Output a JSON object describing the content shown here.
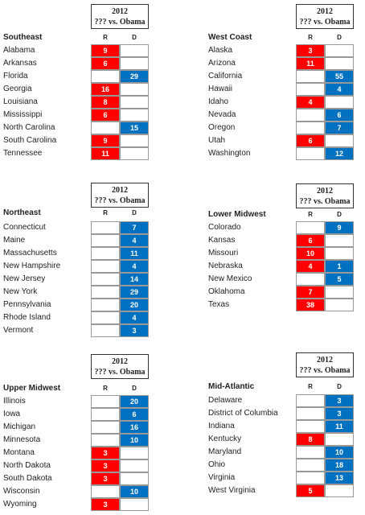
{
  "panels": [
    {
      "year": "2012",
      "subtitle": "??? vs. Obama",
      "region": "Southeast",
      "col_r": "R",
      "col_d": "D",
      "rows": [
        [
          "Alabama",
          9,
          null
        ],
        [
          "Arkansas",
          6,
          null
        ],
        [
          "Florida",
          null,
          29
        ],
        [
          "Georgia",
          16,
          null
        ],
        [
          "Louisiana",
          8,
          null
        ],
        [
          "Mississippi",
          6,
          null
        ],
        [
          "North Carolina",
          null,
          15
        ],
        [
          "South Carolina",
          9,
          null
        ],
        [
          "Tennessee",
          11,
          null
        ]
      ]
    },
    {
      "year": "2012",
      "subtitle": "??? vs. Obama",
      "region": "West Coast",
      "col_r": "R",
      "col_d": "D",
      "rows": [
        [
          "Alaska",
          3,
          null
        ],
        [
          "Arizona",
          11,
          null
        ],
        [
          "California",
          null,
          55
        ],
        [
          "Hawaii",
          null,
          4
        ],
        [
          "Idaho",
          4,
          null
        ],
        [
          "Nevada",
          null,
          6
        ],
        [
          "Oregon",
          null,
          7
        ],
        [
          "Utah",
          6,
          null
        ],
        [
          "Washington",
          null,
          12
        ]
      ]
    },
    {
      "year": "2012",
      "subtitle": "??? vs. Obama",
      "region": "Northeast",
      "col_r": "R",
      "col_d": "D",
      "rows": [
        [
          "Connecticut",
          null,
          7
        ],
        [
          "Maine",
          null,
          4
        ],
        [
          "Massachusetts",
          null,
          11
        ],
        [
          "New Hampshire",
          null,
          4
        ],
        [
          "New Jersey",
          null,
          14
        ],
        [
          "New York",
          null,
          29
        ],
        [
          "Pennsylvania",
          null,
          20
        ],
        [
          "Rhode Island",
          null,
          4
        ],
        [
          "Vermont",
          null,
          3
        ]
      ]
    },
    {
      "year": "2012",
      "subtitle": "??? vs. Obama",
      "region": "Lower Midwest",
      "col_r": "R",
      "col_d": "D",
      "rows": [
        [
          "Colorado",
          null,
          9
        ],
        [
          "Kansas",
          6,
          null
        ],
        [
          "Missouri",
          10,
          null
        ],
        [
          "Nebraska",
          4,
          1
        ],
        [
          "New Mexico",
          null,
          5
        ],
        [
          "Oklahoma",
          7,
          null
        ],
        [
          "Texas",
          38,
          null
        ]
      ]
    },
    {
      "year": "2012",
      "subtitle": "??? vs. Obama",
      "region": "Upper Midwest",
      "col_r": "R",
      "col_d": "D",
      "rows": [
        [
          "Illinois",
          null,
          20
        ],
        [
          "Iowa",
          null,
          6
        ],
        [
          "Michigan",
          null,
          16
        ],
        [
          "Minnesota",
          null,
          10
        ],
        [
          "Montana",
          3,
          null
        ],
        [
          "North Dakota",
          3,
          null
        ],
        [
          "South Dakota",
          3,
          null
        ],
        [
          "Wisconsin",
          null,
          10
        ],
        [
          "Wyoming",
          3,
          null
        ]
      ]
    },
    {
      "year": "2012",
      "subtitle": "??? vs. Obama",
      "region": "Mid-Atlantic",
      "col_r": "R",
      "col_d": "D",
      "rows": [
        [
          "Delaware",
          null,
          3
        ],
        [
          "District of Columbia",
          null,
          3
        ],
        [
          "Indiana",
          null,
          11
        ],
        [
          "Kentucky",
          8,
          null
        ],
        [
          "Maryland",
          null,
          10
        ],
        [
          "Ohio",
          null,
          18
        ],
        [
          "Virginia",
          null,
          13
        ],
        [
          "West Virginia",
          5,
          null
        ]
      ]
    }
  ]
}
